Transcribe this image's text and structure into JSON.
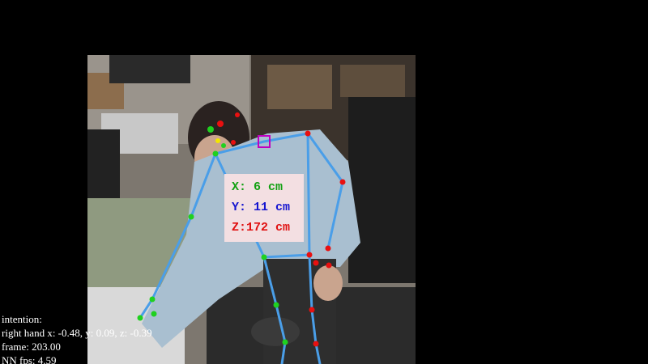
{
  "measurement": {
    "x": "X:  6 cm",
    "y": "Y: 11 cm",
    "z": "Z:172 cm"
  },
  "status": {
    "lines": [
      "intention:",
      "right hand x: -0.48, y: 0.09, z: -0.39",
      "frame: 203.00",
      "NN fps: 4.59"
    ]
  }
}
